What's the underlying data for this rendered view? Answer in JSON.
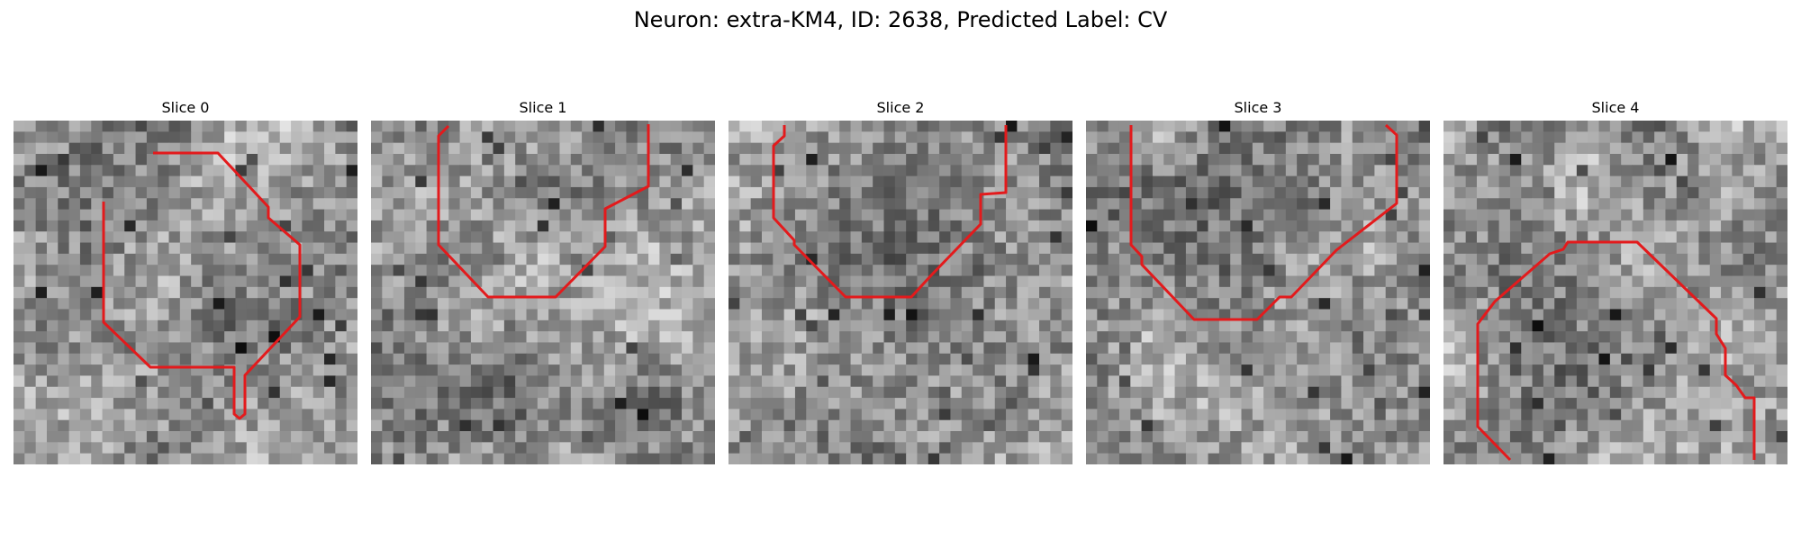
{
  "figure": {
    "title": "Neuron: extra-KM4, ID: 2638, Predicted Label: CV"
  },
  "contour_color": "#e31a1c",
  "panels": [
    {
      "title": "Slice 0",
      "image": "grayscale-em-patch",
      "overlay": "red-contour"
    },
    {
      "title": "Slice 1",
      "image": "grayscale-em-patch",
      "overlay": "red-contour"
    },
    {
      "title": "Slice 2",
      "image": "grayscale-em-patch",
      "overlay": "red-contour"
    },
    {
      "title": "Slice 3",
      "image": "grayscale-em-patch",
      "overlay": "red-contour"
    },
    {
      "title": "Slice 4",
      "image": "grayscale-em-patch",
      "overlay": "red-contour"
    }
  ]
}
